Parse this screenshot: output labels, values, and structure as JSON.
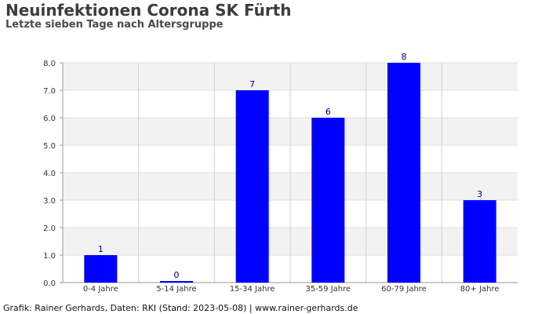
{
  "title": "Neuinfektionen Corona SK Fürth",
  "subtitle": "Letzte sieben Tage nach Altersgruppe",
  "footer": "Grafik: Rainer Gerhards, Daten: RKI (Stand: 2023-05-08) | www.rainer-gerhards.de",
  "chart_data": {
    "type": "bar",
    "title": "Neuinfektionen Corona SK Fürth",
    "subtitle": "Letzte sieben Tage nach Altersgruppe",
    "categories": [
      "0-4 Jahre",
      "5-14 Jahre",
      "15-34 Jahre",
      "35-59 Jahre",
      "60-79 Jahre",
      "80+ Jahre"
    ],
    "values": [
      1,
      0,
      7,
      6,
      8,
      3
    ],
    "value_labels": [
      "1",
      "0",
      "7",
      "6",
      "8",
      "3"
    ],
    "ylim": [
      0,
      8
    ],
    "yticks": [
      "0.0",
      "1.0",
      "2.0",
      "3.0",
      "4.0",
      "5.0",
      "6.0",
      "7.0",
      "8.0"
    ],
    "grid": true,
    "legend": "none",
    "bar_color": "#0000ff",
    "value_label_color": "#000080",
    "band_color": "#f2f2f2"
  }
}
